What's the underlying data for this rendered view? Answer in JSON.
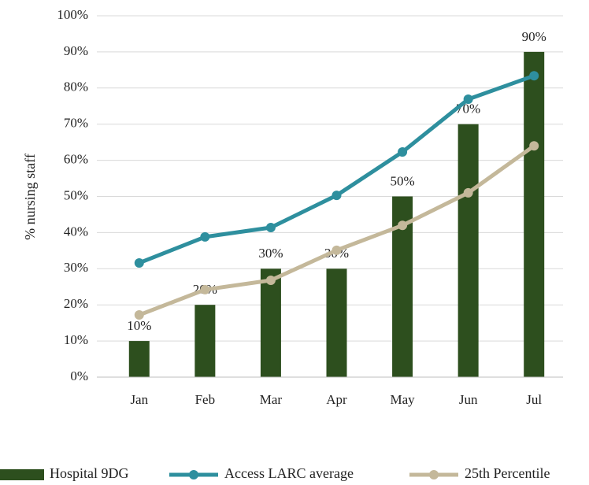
{
  "chart_data": {
    "type": "bar_line",
    "y_label": "% nursing staff",
    "categories": [
      "Jan",
      "Feb",
      "Mar",
      "Apr",
      "May",
      "Jun",
      "Jul"
    ],
    "series": [
      {
        "name": "Hospital 9DG",
        "type": "bar",
        "color": "#2d4f1e",
        "values": [
          10,
          20,
          30,
          30,
          50,
          70,
          90
        ],
        "value_labels": [
          "10%",
          "20%",
          "30%",
          "30%",
          "50%",
          "70%",
          "90%"
        ]
      },
      {
        "name": "Access LARC average",
        "type": "line",
        "color": "#2e8f9e",
        "values": [
          31.6,
          38.8,
          41.4,
          50.3,
          62.3,
          76.9,
          83.4
        ]
      },
      {
        "name": "25th Percentile",
        "type": "line",
        "color": "#c4b89a",
        "values": [
          17.2,
          24.2,
          26.8,
          35.1,
          42,
          51,
          64
        ]
      }
    ],
    "ylim": [
      0,
      100
    ],
    "yticks": [
      {
        "value": 0,
        "label": "0%"
      },
      {
        "value": 10,
        "label": "10%"
      },
      {
        "value": 20,
        "label": "20%"
      },
      {
        "value": 30,
        "label": "30%"
      },
      {
        "value": 40,
        "label": "40%"
      },
      {
        "value": 50,
        "label": "50%"
      },
      {
        "value": 60,
        "label": "60%"
      },
      {
        "value": 70,
        "label": "70%"
      },
      {
        "value": 80,
        "label": "80%"
      },
      {
        "value": 90,
        "label": "90%"
      },
      {
        "value": 100,
        "label": "100%"
      }
    ],
    "grid": true,
    "legend": "bottom"
  }
}
